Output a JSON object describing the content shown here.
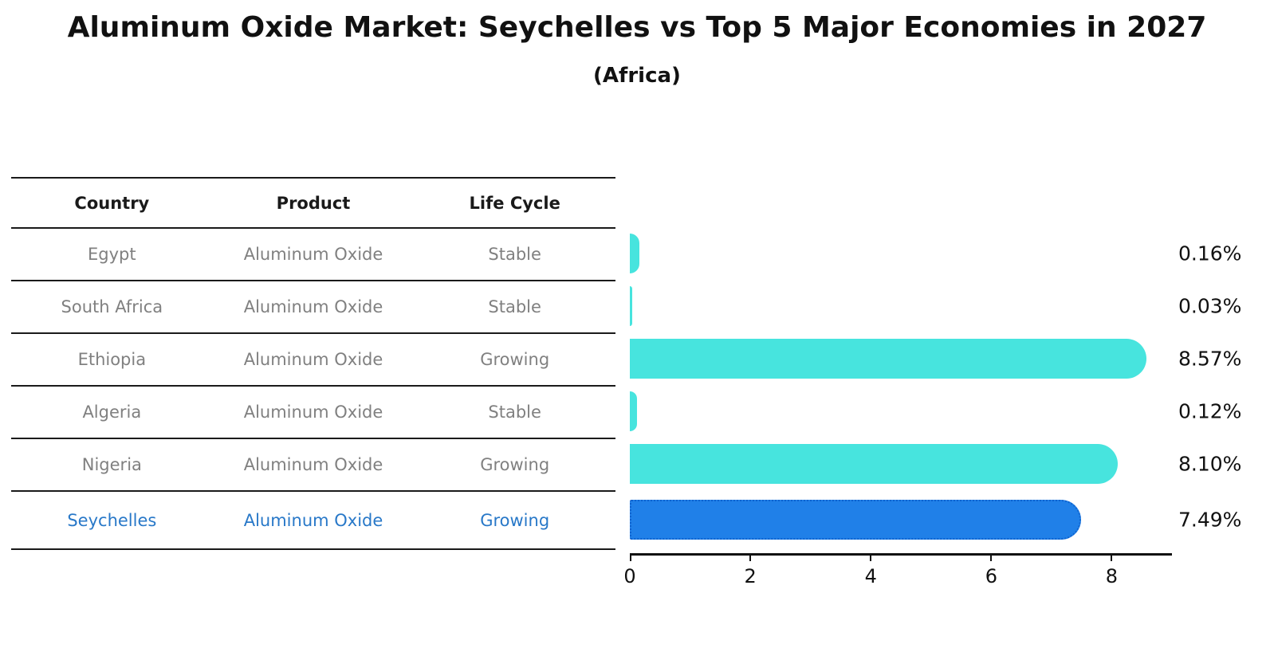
{
  "title": "Aluminum Oxide Market: Seychelles vs Top 5 Major Economies in 2027",
  "subtitle": "(Africa)",
  "table": {
    "columns": [
      "Country",
      "Product",
      "Life Cycle"
    ],
    "rows": [
      {
        "country": "Egypt",
        "product": "Aluminum Oxide",
        "life_cycle": "Stable",
        "highlight": false
      },
      {
        "country": "South Africa",
        "product": "Aluminum Oxide",
        "life_cycle": "Stable",
        "highlight": false
      },
      {
        "country": "Ethiopia",
        "product": "Aluminum Oxide",
        "life_cycle": "Growing",
        "highlight": false
      },
      {
        "country": "Algeria",
        "product": "Aluminum Oxide",
        "life_cycle": "Stable",
        "highlight": false
      },
      {
        "country": "Nigeria",
        "product": "Aluminum Oxide",
        "life_cycle": "Growing",
        "highlight": false
      },
      {
        "country": "Seychelles",
        "product": "Aluminum Oxide",
        "life_cycle": "Growing",
        "highlight": true
      }
    ]
  },
  "chart_data": {
    "type": "bar",
    "orientation": "horizontal",
    "categories": [
      "Egypt",
      "South Africa",
      "Ethiopia",
      "Algeria",
      "Nigeria",
      "Seychelles"
    ],
    "values": [
      0.16,
      0.03,
      8.57,
      0.12,
      8.1,
      7.49
    ],
    "value_labels": [
      "0.16%",
      "0.03%",
      "8.57%",
      "0.12%",
      "8.10%",
      "7.49%"
    ],
    "xlim": [
      0,
      9
    ],
    "xticks": [
      0,
      2,
      4,
      6,
      8
    ],
    "grid": false,
    "legend": "none",
    "highlight_index": 5,
    "colors": {
      "bar_default": "#47e4de",
      "bar_highlight": "#2080e8",
      "bar_highlight_border": "#0f63cf",
      "highlight_text": "#2878c8",
      "table_text": "#808080",
      "axis_text": "#111111"
    }
  }
}
